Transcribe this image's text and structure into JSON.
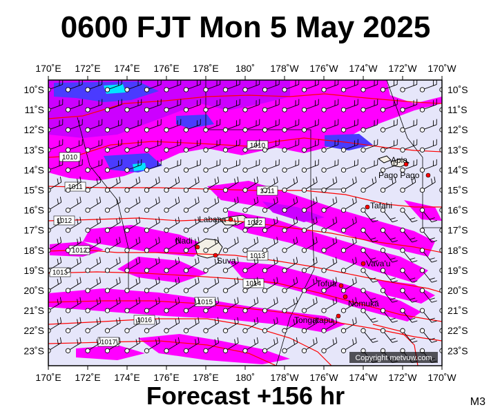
{
  "title": "0600 FJT Mon 5 May 2025",
  "footer": "Forecast +156 hr",
  "code": "M3",
  "copyright": "Copyright metvuw.com",
  "colors": {
    "background": "#e6e6fa",
    "rain_light": "#ff00ff",
    "rain_medium": "#cc00ff",
    "rain_heavy": "#4a3bff",
    "rain_extreme": "#00e5ff",
    "isobar": "#ff0000",
    "land": "#f4f0e6",
    "town": "#ff0000"
  },
  "map": {
    "lon_labels": [
      "170˚E",
      "172˚E",
      "174˚E",
      "176˚E",
      "178˚E",
      "180˚",
      "178˚W",
      "176˚W",
      "174˚W",
      "172˚W",
      "170˚W"
    ],
    "lat_labels": [
      "10˚S",
      "11˚S",
      "12˚S",
      "13˚S",
      "14˚S",
      "15˚S",
      "16˚S",
      "17˚S",
      "18˚S",
      "19˚S",
      "20˚S",
      "21˚S",
      "22˚S",
      "23˚S"
    ],
    "isobars": [
      {
        "label": "1010",
        "pressure": 1010
      },
      {
        "label": "1010",
        "pressure": 1010
      },
      {
        "label": "1011",
        "pressure": 1011
      },
      {
        "label": "1011",
        "pressure": 1011
      },
      {
        "label": "1012",
        "pressure": 1012
      },
      {
        "label": "1012",
        "pressure": 1012
      },
      {
        "label": "1012",
        "pressure": 1012
      },
      {
        "label": "1013",
        "pressure": 1013
      },
      {
        "label": "1013",
        "pressure": 1013
      },
      {
        "label": "1014",
        "pressure": 1014
      },
      {
        "label": "1015",
        "pressure": 1015
      },
      {
        "label": "1016",
        "pressure": 1016
      },
      {
        "label": "1017",
        "pressure": 1017
      }
    ],
    "places": [
      "Apia",
      "Pago Pago",
      "Tafahi",
      "Labasa",
      "Nadi",
      "Suva",
      "Vava'u",
      "Tofua",
      "Nomuka",
      "Tongatapu"
    ]
  }
}
